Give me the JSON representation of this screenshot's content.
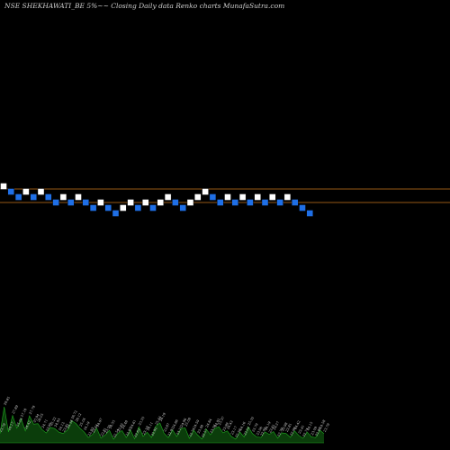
{
  "header": {
    "title": "NSE SHEKHAWATI_BE 5%~~ Closing Daily data Renko charts MunafaSutra.com"
  },
  "chart_data": {
    "type": "renko",
    "title": "NSE SHEKHAWATI_BE 5%~~ Closing Daily data Renko charts MunafaSutra.com",
    "box_size_percent": 5,
    "bricks": [
      {
        "col": 0,
        "level": 0,
        "dir": "up"
      },
      {
        "col": 1,
        "level": -1,
        "dir": "down"
      },
      {
        "col": 2,
        "level": -2,
        "dir": "down"
      },
      {
        "col": 3,
        "level": -1,
        "dir": "up"
      },
      {
        "col": 4,
        "level": -2,
        "dir": "down"
      },
      {
        "col": 5,
        "level": -1,
        "dir": "up"
      },
      {
        "col": 6,
        "level": -2,
        "dir": "down"
      },
      {
        "col": 7,
        "level": -3,
        "dir": "down"
      },
      {
        "col": 8,
        "level": -2,
        "dir": "up"
      },
      {
        "col": 9,
        "level": -3,
        "dir": "down"
      },
      {
        "col": 10,
        "level": -2,
        "dir": "up"
      },
      {
        "col": 11,
        "level": -3,
        "dir": "down"
      },
      {
        "col": 12,
        "level": -4,
        "dir": "down"
      },
      {
        "col": 13,
        "level": -3,
        "dir": "up"
      },
      {
        "col": 14,
        "level": -4,
        "dir": "down"
      },
      {
        "col": 15,
        "level": -5,
        "dir": "down"
      },
      {
        "col": 16,
        "level": -4,
        "dir": "up"
      },
      {
        "col": 17,
        "level": -3,
        "dir": "up"
      },
      {
        "col": 18,
        "level": -4,
        "dir": "down"
      },
      {
        "col": 19,
        "level": -3,
        "dir": "up"
      },
      {
        "col": 20,
        "level": -4,
        "dir": "down"
      },
      {
        "col": 21,
        "level": -3,
        "dir": "up"
      },
      {
        "col": 22,
        "level": -2,
        "dir": "up"
      },
      {
        "col": 23,
        "level": -3,
        "dir": "down"
      },
      {
        "col": 24,
        "level": -4,
        "dir": "down"
      },
      {
        "col": 25,
        "level": -3,
        "dir": "up"
      },
      {
        "col": 26,
        "level": -2,
        "dir": "up"
      },
      {
        "col": 27,
        "level": -1,
        "dir": "up"
      },
      {
        "col": 28,
        "level": -2,
        "dir": "down"
      },
      {
        "col": 29,
        "level": -3,
        "dir": "down"
      },
      {
        "col": 30,
        "level": -2,
        "dir": "up"
      },
      {
        "col": 31,
        "level": -3,
        "dir": "down"
      },
      {
        "col": 32,
        "level": -2,
        "dir": "up"
      },
      {
        "col": 33,
        "level": -3,
        "dir": "down"
      },
      {
        "col": 34,
        "level": -2,
        "dir": "up"
      },
      {
        "col": 35,
        "level": -3,
        "dir": "down"
      },
      {
        "col": 36,
        "level": -2,
        "dir": "up"
      },
      {
        "col": 37,
        "level": -3,
        "dir": "down"
      },
      {
        "col": 38,
        "level": -2,
        "dir": "up"
      },
      {
        "col": 39,
        "level": -3,
        "dir": "down"
      },
      {
        "col": 40,
        "level": -4,
        "dir": "down"
      },
      {
        "col": 41,
        "level": -5,
        "dir": "down"
      }
    ],
    "reference_lines": [
      {
        "level": -0.5,
        "color": "#c8761e"
      },
      {
        "level": -3.0,
        "color": "#c8761e"
      }
    ],
    "volume_labels": [
      "23.79",
      "29.85",
      "24.17",
      "27.89",
      "25.04",
      "27.18",
      "24.42",
      "27.79",
      "25.94",
      "26.05",
      "24.71",
      "23.95",
      "25.22",
      "24.93",
      "24.12",
      "23.81",
      "24.58",
      "26.72",
      "26.12",
      "25.04",
      "24.19",
      "22.93",
      "23.64",
      "24.97",
      "22.81",
      "23.50",
      "24.55",
      "22.54",
      "23.85",
      "24.48",
      "22.93",
      "24.61",
      "22.63",
      "25.33",
      "23.19",
      "24.11",
      "22.92",
      "25.44",
      "26.19",
      "23.87",
      "22.91",
      "24.66",
      "23.15",
      "24.96",
      "25.08",
      "22.74",
      "24.59",
      "23.48",
      "22.57",
      "24.84",
      "23.56",
      "24.92",
      "25.37",
      "23.99",
      "24.43",
      "23.17",
      "22.56",
      "24.16",
      "23.04",
      "25.32",
      "23.79",
      "23.06",
      "22.95",
      "24.19",
      "23.61",
      "24.27",
      "22.79",
      "23.98",
      "23.81",
      "22.96",
      "24.42",
      "23.41",
      "22.74",
      "24.15",
      "23.09",
      "22.88",
      "24.58",
      "23.79"
    ],
    "colors": {
      "background": "#000000",
      "up_brick": "#ffffff",
      "down_brick": "#1f6fe6",
      "reference_line": "#c8761e",
      "volume_fill": "#0b3d0b",
      "volume_stroke": "#1faa1f"
    }
  }
}
